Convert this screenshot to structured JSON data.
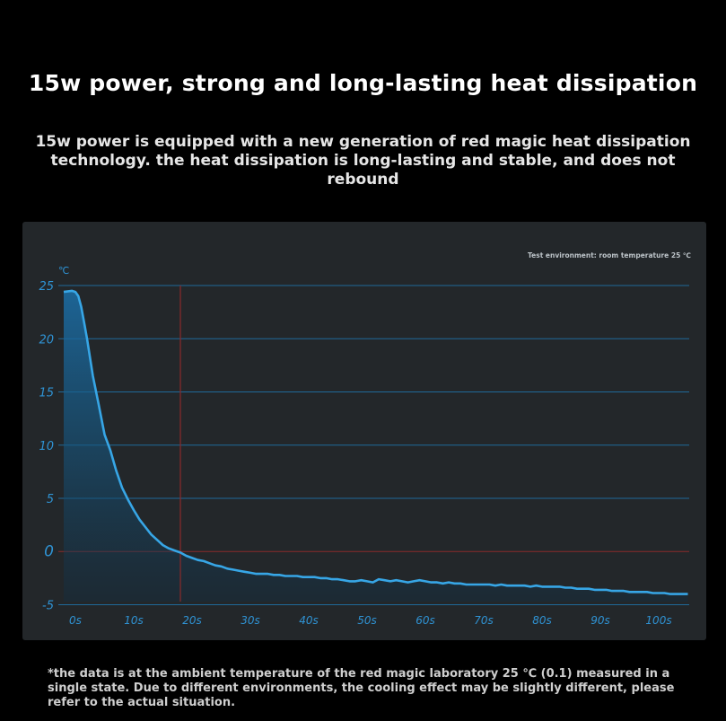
{
  "header": {
    "title": "15w power, strong and long-lasting heat dissipation",
    "subtitle": "15w power is equipped with a new generation of red magic heat dissipation technology. the heat dissipation is long-lasting and stable, and does not rebound"
  },
  "footnote": "*the data is at the ambient temperature of the red magic laboratory 25 ℃ (0.1) measured in a single state. Due to different environments, the cooling effect may be slightly different, please refer to the actual situation.",
  "colors": {
    "curve": "#37a6e6",
    "grid": "#1f6a9a",
    "marker": "#8a2a2a",
    "tick": "#2f93d4",
    "panel": "#23272a"
  },
  "chart_data": {
    "type": "area",
    "environment_note": "Test environment: room temperature 25 ℃",
    "y_unit": "℃",
    "ylim": [
      -5,
      25
    ],
    "xlim": [
      0,
      105
    ],
    "yticks": [
      "25",
      "20",
      "15",
      "10",
      "5",
      "0",
      "-5"
    ],
    "xticks": [
      "0s",
      "10s",
      "20s",
      "30s",
      "40s",
      "50s",
      "60s",
      "70s",
      "80s",
      "90s",
      "100s"
    ],
    "vertical_marker_x": 18,
    "grid": true,
    "series": [
      {
        "x": [
          -2,
          -0.6,
          0,
          0.5,
          1,
          1.5,
          2,
          3,
          4,
          5,
          6,
          7,
          8,
          9,
          10,
          11,
          12,
          13,
          14,
          15,
          16,
          17,
          18,
          19,
          20,
          21,
          22,
          23,
          24,
          25,
          26,
          27,
          28,
          29,
          30,
          31,
          32,
          33,
          34,
          35,
          36,
          37,
          38,
          39,
          40,
          41,
          42,
          43,
          44,
          45,
          46,
          47,
          48,
          49,
          50,
          51,
          52,
          53,
          54,
          55,
          56,
          57,
          58,
          59,
          60,
          61,
          62,
          63,
          64,
          65,
          66,
          67,
          68,
          69,
          70,
          71,
          72,
          73,
          74,
          75,
          76,
          77,
          78,
          79,
          80,
          81,
          82,
          83,
          84,
          85,
          86,
          87,
          88,
          89,
          90,
          91,
          92,
          93,
          94,
          95,
          96,
          97,
          98,
          99,
          100,
          101,
          102,
          103,
          104,
          105
        ],
        "y": [
          24.4,
          24.5,
          24.4,
          24.0,
          23.0,
          21.5,
          20.0,
          16.5,
          13.8,
          11.0,
          9.5,
          7.6,
          6.0,
          4.9,
          3.9,
          3.0,
          2.3,
          1.6,
          1.1,
          0.6,
          0.3,
          0.1,
          -0.1,
          -0.4,
          -0.6,
          -0.8,
          -0.9,
          -1.1,
          -1.3,
          -1.4,
          -1.6,
          -1.7,
          -1.8,
          -1.9,
          -2.0,
          -2.1,
          -2.1,
          -2.1,
          -2.2,
          -2.2,
          -2.3,
          -2.3,
          -2.3,
          -2.4,
          -2.4,
          -2.4,
          -2.5,
          -2.5,
          -2.6,
          -2.6,
          -2.7,
          -2.8,
          -2.8,
          -2.7,
          -2.8,
          -2.9,
          -2.6,
          -2.7,
          -2.8,
          -2.7,
          -2.8,
          -2.9,
          -2.8,
          -2.7,
          -2.8,
          -2.9,
          -2.9,
          -3.0,
          -2.9,
          -3.0,
          -3.0,
          -3.1,
          -3.1,
          -3.1,
          -3.1,
          -3.1,
          -3.2,
          -3.1,
          -3.2,
          -3.2,
          -3.2,
          -3.2,
          -3.3,
          -3.2,
          -3.3,
          -3.3,
          -3.3,
          -3.3,
          -3.4,
          -3.4,
          -3.5,
          -3.5,
          -3.5,
          -3.6,
          -3.6,
          -3.6,
          -3.7,
          -3.7,
          -3.7,
          -3.8,
          -3.8,
          -3.8,
          -3.8,
          -3.9,
          -3.9,
          -3.9,
          -4.0,
          -4.0,
          -4.0,
          -4.0
        ]
      }
    ]
  }
}
